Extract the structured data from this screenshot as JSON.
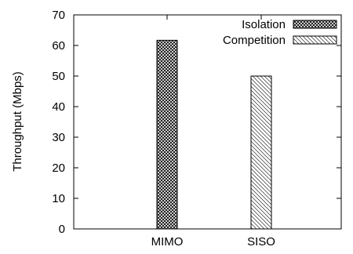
{
  "chart_data": {
    "type": "bar",
    "title": "",
    "xlabel": "",
    "ylabel": "Throughput (Mbps)",
    "ylim": [
      0,
      70
    ],
    "yticks": [
      0,
      10,
      20,
      30,
      40,
      50,
      60,
      70
    ],
    "categories": [
      "MIMO",
      "SISO"
    ],
    "series": [
      {
        "name": "Isolation",
        "pattern": "dense-crosshatch",
        "values": [
          61.7,
          null
        ]
      },
      {
        "name": "Competition",
        "pattern": "sparse-diagonal",
        "values": [
          null,
          50
        ]
      }
    ],
    "grid": false,
    "legend_position": "top-right",
    "colors": {
      "foreground": "#000000",
      "background": "#ffffff"
    }
  }
}
